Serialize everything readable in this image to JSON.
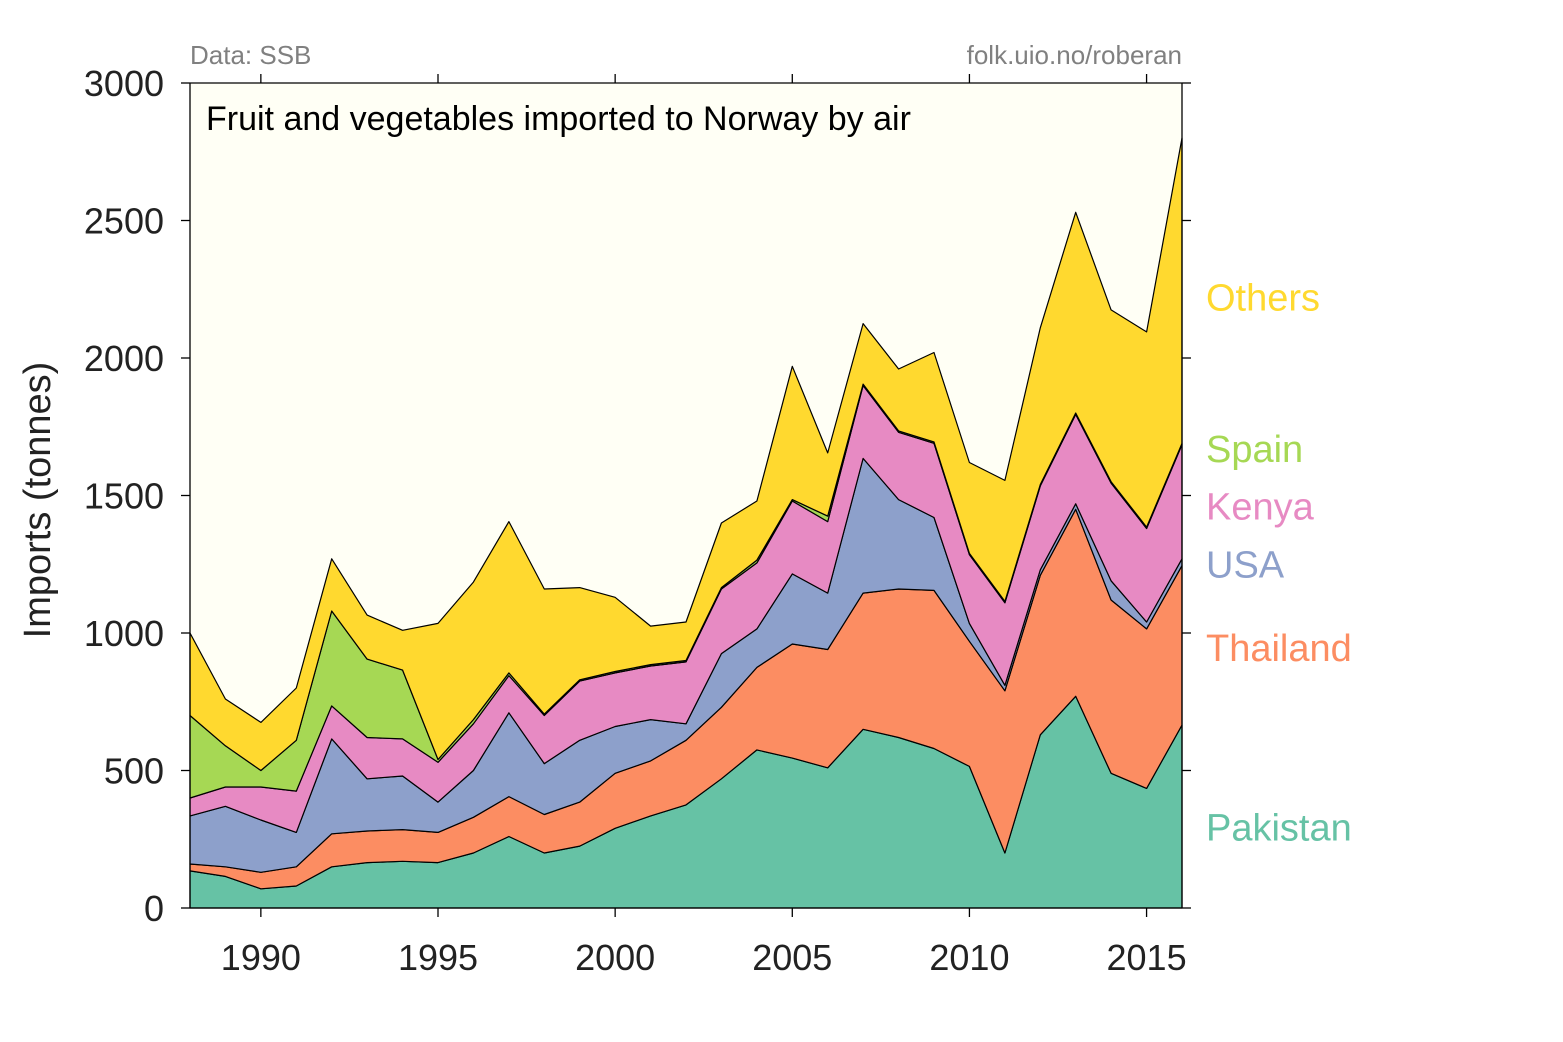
{
  "source_note": "Data: SSB",
  "credit_note": "folk.uio.no/roberan",
  "colors": {
    "plot_bg": "#fffff5",
    "Pakistan": "#66c2a5",
    "Thailand": "#fc8d62",
    "USA": "#8da0cb",
    "Kenya": "#e78ac3",
    "Spain": "#a6d854",
    "Others": "#ffd92f"
  },
  "chart_data": {
    "type": "area",
    "stacked": true,
    "title": "Fruit and vegetables imported to Norway by air",
    "xlabel": "",
    "ylabel": "Imports (tonnes)",
    "x": [
      1988,
      1989,
      1990,
      1991,
      1992,
      1993,
      1994,
      1995,
      1996,
      1997,
      1998,
      1999,
      2000,
      2001,
      2002,
      2003,
      2004,
      2005,
      2006,
      2007,
      2008,
      2009,
      2010,
      2011,
      2012,
      2013,
      2014,
      2015,
      2016
    ],
    "xlim": [
      1988,
      2016
    ],
    "ylim": [
      0,
      3000
    ],
    "xticks": [
      1990,
      1995,
      2000,
      2005,
      2010,
      2015
    ],
    "yticks": [
      0,
      500,
      1000,
      1500,
      2000,
      2500,
      3000
    ],
    "grid": false,
    "legend": "direct labels at right",
    "series": [
      {
        "name": "Pakistan",
        "values": [
          135,
          115,
          70,
          80,
          150,
          165,
          170,
          165,
          200,
          260,
          200,
          225,
          290,
          335,
          375,
          470,
          575,
          545,
          510,
          650,
          620,
          580,
          515,
          200,
          630,
          770,
          490,
          435,
          665
        ]
      },
      {
        "name": "Thailand",
        "values": [
          25,
          35,
          60,
          70,
          120,
          115,
          115,
          110,
          130,
          145,
          140,
          160,
          200,
          200,
          235,
          260,
          300,
          415,
          430,
          495,
          540,
          575,
          455,
          590,
          580,
          680,
          630,
          580,
          580
        ]
      },
      {
        "name": "USA",
        "values": [
          175,
          220,
          190,
          125,
          345,
          190,
          195,
          110,
          170,
          305,
          185,
          225,
          170,
          150,
          60,
          195,
          140,
          255,
          205,
          490,
          325,
          265,
          65,
          20,
          20,
          20,
          70,
          25,
          25
        ]
      },
      {
        "name": "Kenya",
        "values": [
          65,
          70,
          120,
          150,
          120,
          150,
          135,
          145,
          170,
          135,
          175,
          215,
          195,
          195,
          225,
          235,
          240,
          265,
          260,
          265,
          245,
          270,
          250,
          300,
          305,
          325,
          355,
          340,
          415
        ]
      },
      {
        "name": "Spain",
        "values": [
          300,
          150,
          60,
          185,
          345,
          285,
          250,
          10,
          15,
          10,
          5,
          5,
          5,
          5,
          5,
          5,
          10,
          5,
          20,
          5,
          5,
          5,
          5,
          5,
          5,
          5,
          5,
          5,
          5
        ]
      },
      {
        "name": "Others",
        "values": [
          300,
          170,
          175,
          190,
          190,
          160,
          145,
          495,
          500,
          550,
          455,
          335,
          270,
          140,
          140,
          235,
          215,
          485,
          230,
          220,
          225,
          325,
          330,
          440,
          570,
          730,
          625,
          710,
          1110
        ]
      }
    ]
  }
}
